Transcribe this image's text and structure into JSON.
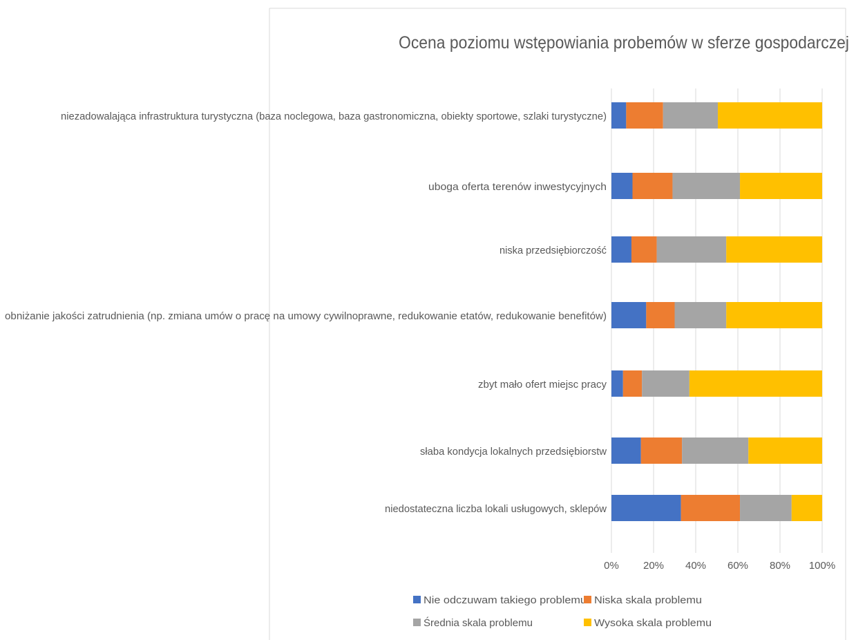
{
  "chart_data": {
    "type": "bar",
    "orientation": "horizontal",
    "stacked": "percent",
    "title": "Ocena poziomu wstępowiania probemów w sferze  gospodarczej",
    "categories": [
      "niezadowalająca infrastruktura turystyczna (baza noclegowa, baza gastronomiczna, obiekty sportowe, szlaki turystyczne)",
      "uboga oferta terenów inwestycyjnych",
      "niska przedsiębiorczość",
      "obniżanie jakości zatrudnienia (np. zmiana umów o pracę na umowy cywilnoprawne, redukowanie etatów, redukowanie benefitów)",
      "zbyt mało ofert miejsc pracy",
      "słaba kondycja lokalnych przedsiębiorstw",
      "niedostateczna liczba lokali usługowych, sklepów"
    ],
    "series": [
      {
        "name": "Nie odczuwam takiego problemu",
        "color": "#4472C4",
        "values": [
          7,
          10,
          9.5,
          16.5,
          5.5,
          14,
          33
        ]
      },
      {
        "name": "Niska skala problemu",
        "color": "#ED7D31",
        "values": [
          17.5,
          19,
          12,
          13.5,
          9,
          19.5,
          28
        ]
      },
      {
        "name": "Średnia skala problemu",
        "color": "#A5A5A5",
        "values": [
          26,
          32,
          33,
          24.5,
          22.5,
          31.5,
          24.5
        ]
      },
      {
        "name": "Wysoka skala problemu",
        "color": "#FFC000",
        "values": [
          49.5,
          39,
          45.5,
          45.5,
          63,
          35,
          14.5
        ]
      }
    ],
    "xlim": [
      0,
      100
    ],
    "x_ticks": [
      "0%",
      "20%",
      "40%",
      "60%",
      "80%",
      "100%"
    ],
    "grid": true,
    "legend_position": "bottom"
  }
}
